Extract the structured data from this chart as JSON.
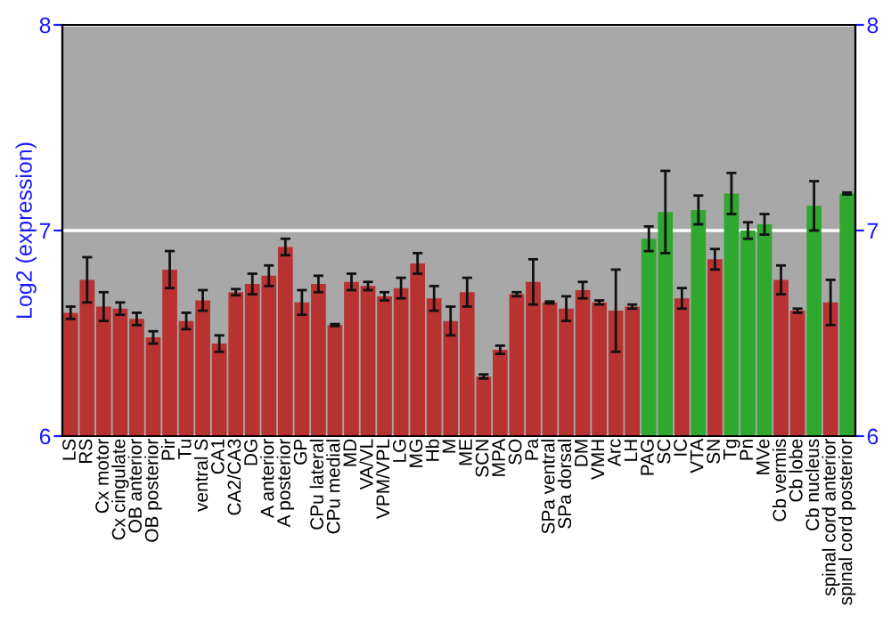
{
  "chart_data": {
    "type": "bar",
    "ylabel": "Log2 (expression)",
    "categories": [
      "LS",
      "RS",
      "Cx motor",
      "Cx cingulate",
      "OB anterior",
      "OB posterior",
      "Pir",
      "Tu",
      "ventral S",
      "CA1",
      "CA2/CA3",
      "DG",
      "A anterior",
      "A posterior",
      "GP",
      "CPu lateral",
      "CPu medial",
      "MD",
      "VA/VL",
      "VPM/VPL",
      "LG",
      "MG",
      "Hb",
      "M",
      "ME",
      "SCN",
      "MPA",
      "SO",
      "Pa",
      "SPa ventral",
      "SPa dorsal",
      "DM",
      "VMH",
      "Arc",
      "LH",
      "PAG",
      "SC",
      "IC",
      "VTA",
      "SN",
      "Tg",
      "Pn",
      "MVe",
      "Cb vermis",
      "Cb lobe",
      "Cb nucleus",
      "spinal cord anterior",
      "spinal cord posterior"
    ],
    "values": [
      6.6,
      6.76,
      6.63,
      6.62,
      6.57,
      6.48,
      6.81,
      6.56,
      6.66,
      6.45,
      6.7,
      6.74,
      6.78,
      6.92,
      6.65,
      6.74,
      6.54,
      6.75,
      6.73,
      6.68,
      6.72,
      6.84,
      6.67,
      6.56,
      6.7,
      6.29,
      6.42,
      6.69,
      6.75,
      6.65,
      6.62,
      6.71,
      6.65,
      6.61,
      6.63,
      6.96,
      7.09,
      6.67,
      7.1,
      6.86,
      7.18,
      7.0,
      7.03,
      6.76,
      6.61,
      7.12,
      6.65,
      7.18
    ],
    "errors": [
      0.03,
      0.11,
      0.07,
      0.03,
      0.03,
      0.03,
      0.09,
      0.04,
      0.05,
      0.04,
      0.015,
      0.05,
      0.05,
      0.04,
      0.06,
      0.04,
      0.005,
      0.04,
      0.02,
      0.02,
      0.05,
      0.05,
      0.06,
      0.07,
      0.07,
      0.01,
      0.02,
      0.01,
      0.11,
      0.005,
      0.06,
      0.04,
      0.01,
      0.2,
      0.01,
      0.06,
      0.2,
      0.05,
      0.07,
      0.05,
      0.1,
      0.04,
      0.05,
      0.07,
      0.01,
      0.12,
      0.11,
      0.005
    ],
    "colors": [
      "#b83232",
      "#b83232",
      "#b83232",
      "#b83232",
      "#b83232",
      "#b83232",
      "#b83232",
      "#b83232",
      "#b83232",
      "#b83232",
      "#b83232",
      "#b83232",
      "#b83232",
      "#b83232",
      "#b83232",
      "#b83232",
      "#b83232",
      "#b83232",
      "#b83232",
      "#b83232",
      "#b83232",
      "#b83232",
      "#b83232",
      "#b83232",
      "#b83232",
      "#b83232",
      "#b83232",
      "#b83232",
      "#b83232",
      "#b83232",
      "#b83232",
      "#b83232",
      "#b83232",
      "#b83232",
      "#b83232",
      "#2ea82e",
      "#2ea82e",
      "#b83232",
      "#2ea82e",
      "#b83232",
      "#2ea82e",
      "#2ea82e",
      "#2ea82e",
      "#b83232",
      "#b83232",
      "#2ea82e",
      "#b83232",
      "#2ea82e"
    ],
    "ylim": [
      6,
      8
    ],
    "yticks": [
      6,
      7,
      8
    ],
    "y2lim": [
      6,
      8
    ],
    "y2ticks": [
      6,
      7,
      8
    ],
    "grid": "y"
  }
}
